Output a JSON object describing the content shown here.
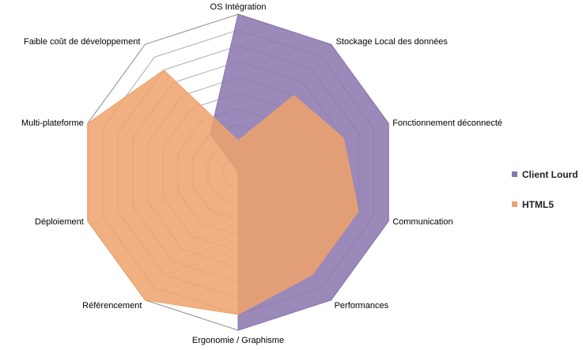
{
  "chart_data": {
    "type": "radar",
    "title": "",
    "axes": [
      "OS Intégration",
      "Stockage Local des données",
      "Fonctionnement déconnecté",
      "Communication",
      "Performances",
      "Ergonomie / Graphisme",
      "Référencement",
      "Déploiement",
      "Multi-plateforme",
      "Faible coût de développement"
    ],
    "rlim": [
      0,
      10
    ],
    "grid_levels": 10,
    "grid": true,
    "legend_position": "right",
    "series": [
      {
        "name": "Client Lourd",
        "color": "#8a76ad",
        "fill_opacity": 0.85,
        "values": [
          10,
          10,
          10,
          10,
          10,
          10,
          0,
          0,
          0,
          3
        ]
      },
      {
        "name": "HTML5",
        "color": "#eea26b",
        "fill_opacity": 0.85,
        "values": [
          2,
          6,
          7,
          8,
          8,
          9,
          10,
          10,
          10,
          8
        ]
      }
    ]
  }
}
